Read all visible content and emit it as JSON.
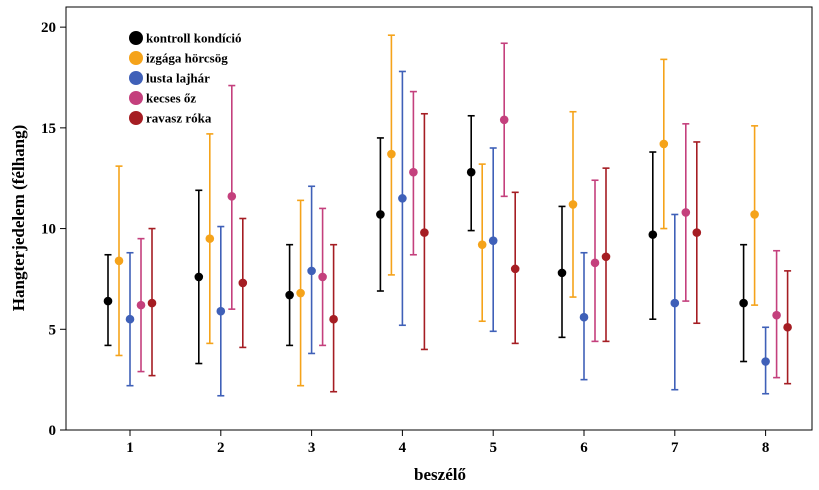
{
  "chart_data": {
    "type": "errorbar",
    "xlabel": "beszélő",
    "ylabel": "Hangterjedelem (félhang)",
    "ylim": [
      0,
      21
    ],
    "yticks": [
      0,
      5,
      10,
      15,
      20
    ],
    "categories": [
      "1",
      "2",
      "3",
      "4",
      "5",
      "6",
      "7",
      "8"
    ],
    "legend_position": "top-left",
    "series": [
      {
        "name": "kontroll kondíció",
        "color": "#000000",
        "values": [
          6.4,
          7.6,
          6.7,
          10.7,
          12.8,
          7.8,
          9.7,
          6.3
        ],
        "lower": [
          4.2,
          3.3,
          4.2,
          6.9,
          9.9,
          4.6,
          5.5,
          3.4
        ],
        "upper": [
          8.7,
          11.9,
          9.2,
          14.5,
          15.6,
          11.1,
          13.8,
          9.2
        ]
      },
      {
        "name": "izgága hörcsög",
        "color": "#F5A31A",
        "values": [
          8.4,
          9.5,
          6.8,
          13.7,
          9.2,
          11.2,
          14.2,
          10.7
        ],
        "lower": [
          3.7,
          4.3,
          2.2,
          7.7,
          5.4,
          6.6,
          10.0,
          6.2
        ],
        "upper": [
          13.1,
          14.7,
          11.4,
          19.6,
          13.2,
          15.8,
          18.4,
          15.1
        ]
      },
      {
        "name": "lusta lajhár",
        "color": "#3F60B8",
        "values": [
          5.5,
          5.9,
          7.9,
          11.5,
          9.4,
          5.6,
          6.3,
          3.4
        ],
        "lower": [
          2.2,
          1.7,
          3.8,
          5.2,
          4.9,
          2.5,
          2.0,
          1.8
        ],
        "upper": [
          8.8,
          10.1,
          12.1,
          17.8,
          14.0,
          8.8,
          10.7,
          5.1
        ]
      },
      {
        "name": "kecses őz",
        "color": "#C4407D",
        "values": [
          6.2,
          11.6,
          7.6,
          12.8,
          15.4,
          8.3,
          10.8,
          5.7
        ],
        "lower": [
          2.9,
          6.0,
          4.2,
          8.7,
          11.6,
          4.4,
          6.4,
          2.6
        ],
        "upper": [
          9.5,
          17.1,
          11.0,
          16.8,
          19.2,
          12.4,
          15.2,
          8.9
        ]
      },
      {
        "name": "ravasz róka",
        "color": "#A51D23",
        "values": [
          6.3,
          7.3,
          5.5,
          9.8,
          8.0,
          8.6,
          9.8,
          5.1
        ],
        "lower": [
          2.7,
          4.1,
          1.9,
          4.0,
          4.3,
          4.4,
          5.3,
          2.3
        ],
        "upper": [
          10.0,
          10.5,
          9.2,
          15.7,
          11.8,
          13.0,
          14.3,
          7.9
        ]
      }
    ]
  }
}
